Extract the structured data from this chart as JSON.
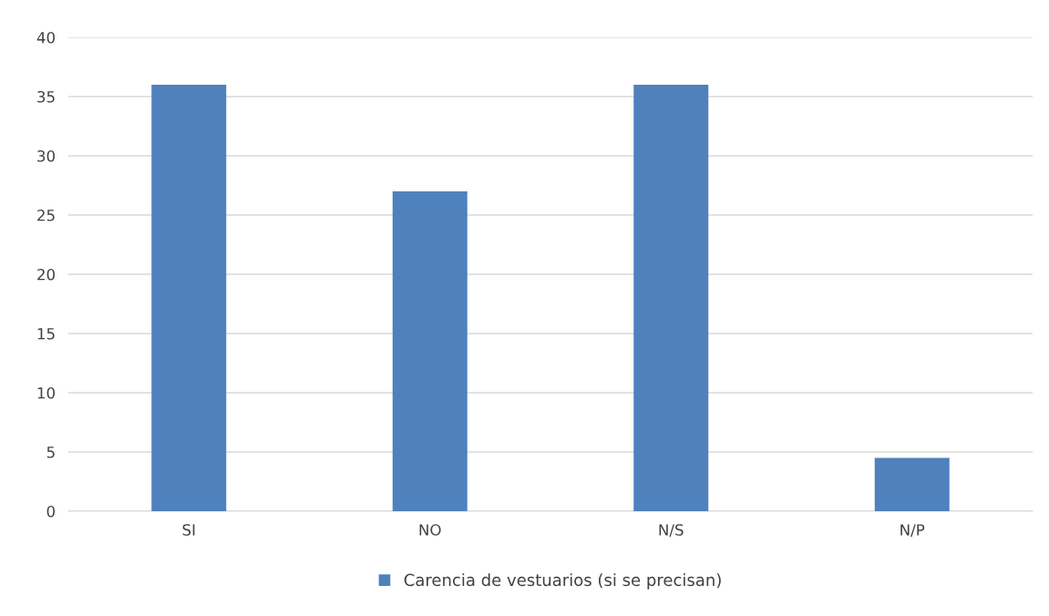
{
  "chart_data": {
    "type": "bar",
    "categories": [
      "SI",
      "NO",
      "N/S",
      "N/P"
    ],
    "series": [
      {
        "name": "Carencia de vestuarios (si se precisan)",
        "color": "#4f81bd",
        "values": [
          36,
          27,
          36,
          4.5
        ]
      }
    ],
    "ylim": [
      0,
      40
    ],
    "yticks": [
      0,
      5,
      10,
      15,
      20,
      25,
      30,
      35,
      40
    ],
    "grid": "y",
    "legend": "bottom"
  }
}
